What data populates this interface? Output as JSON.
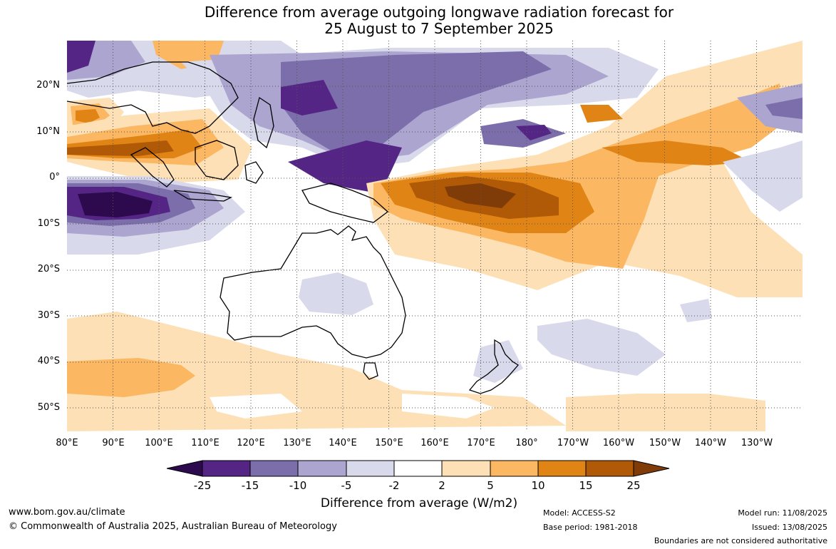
{
  "title": {
    "line1": "Difference from average outgoing longwave radiation forecast for",
    "line2": "25 August to 7 September 2025"
  },
  "axes": {
    "lat_labels": [
      "20°N",
      "10°N",
      "0°",
      "10°S",
      "20°S",
      "30°S",
      "40°S",
      "50°S"
    ],
    "lon_labels": [
      "80°E",
      "90°E",
      "100°E",
      "110°E",
      "120°E",
      "130°E",
      "140°E",
      "150°E",
      "160°E",
      "170°E",
      "180°",
      "170°W",
      "160°W",
      "150°W",
      "140°W",
      "130°W"
    ]
  },
  "colorbar": {
    "title": "Difference from average (W/m2)",
    "ticks": [
      "-25",
      "-15",
      "-10",
      "-5",
      "-2",
      "2",
      "5",
      "10",
      "15",
      "25"
    ],
    "colors": [
      "#2d0a4e",
      "#552586",
      "#7c6eab",
      "#aba5cf",
      "#d9d9ec",
      "#ffffff",
      "#fde0b5",
      "#fbb761",
      "#e08416",
      "#b05906",
      "#7f3b08"
    ]
  },
  "footer": {
    "website": "www.bom.gov.au/climate",
    "copyright": "© Commonwealth of Australia 2025, Australian Bureau of Meteorology",
    "model": "Model: ACCESS-S2",
    "base_period": "Base period: 1981-2018",
    "model_run": "Model run: 11/08/2025",
    "issued": "Issued: 13/08/2025",
    "disclaimer": "Boundaries are not considered authoritative"
  }
}
